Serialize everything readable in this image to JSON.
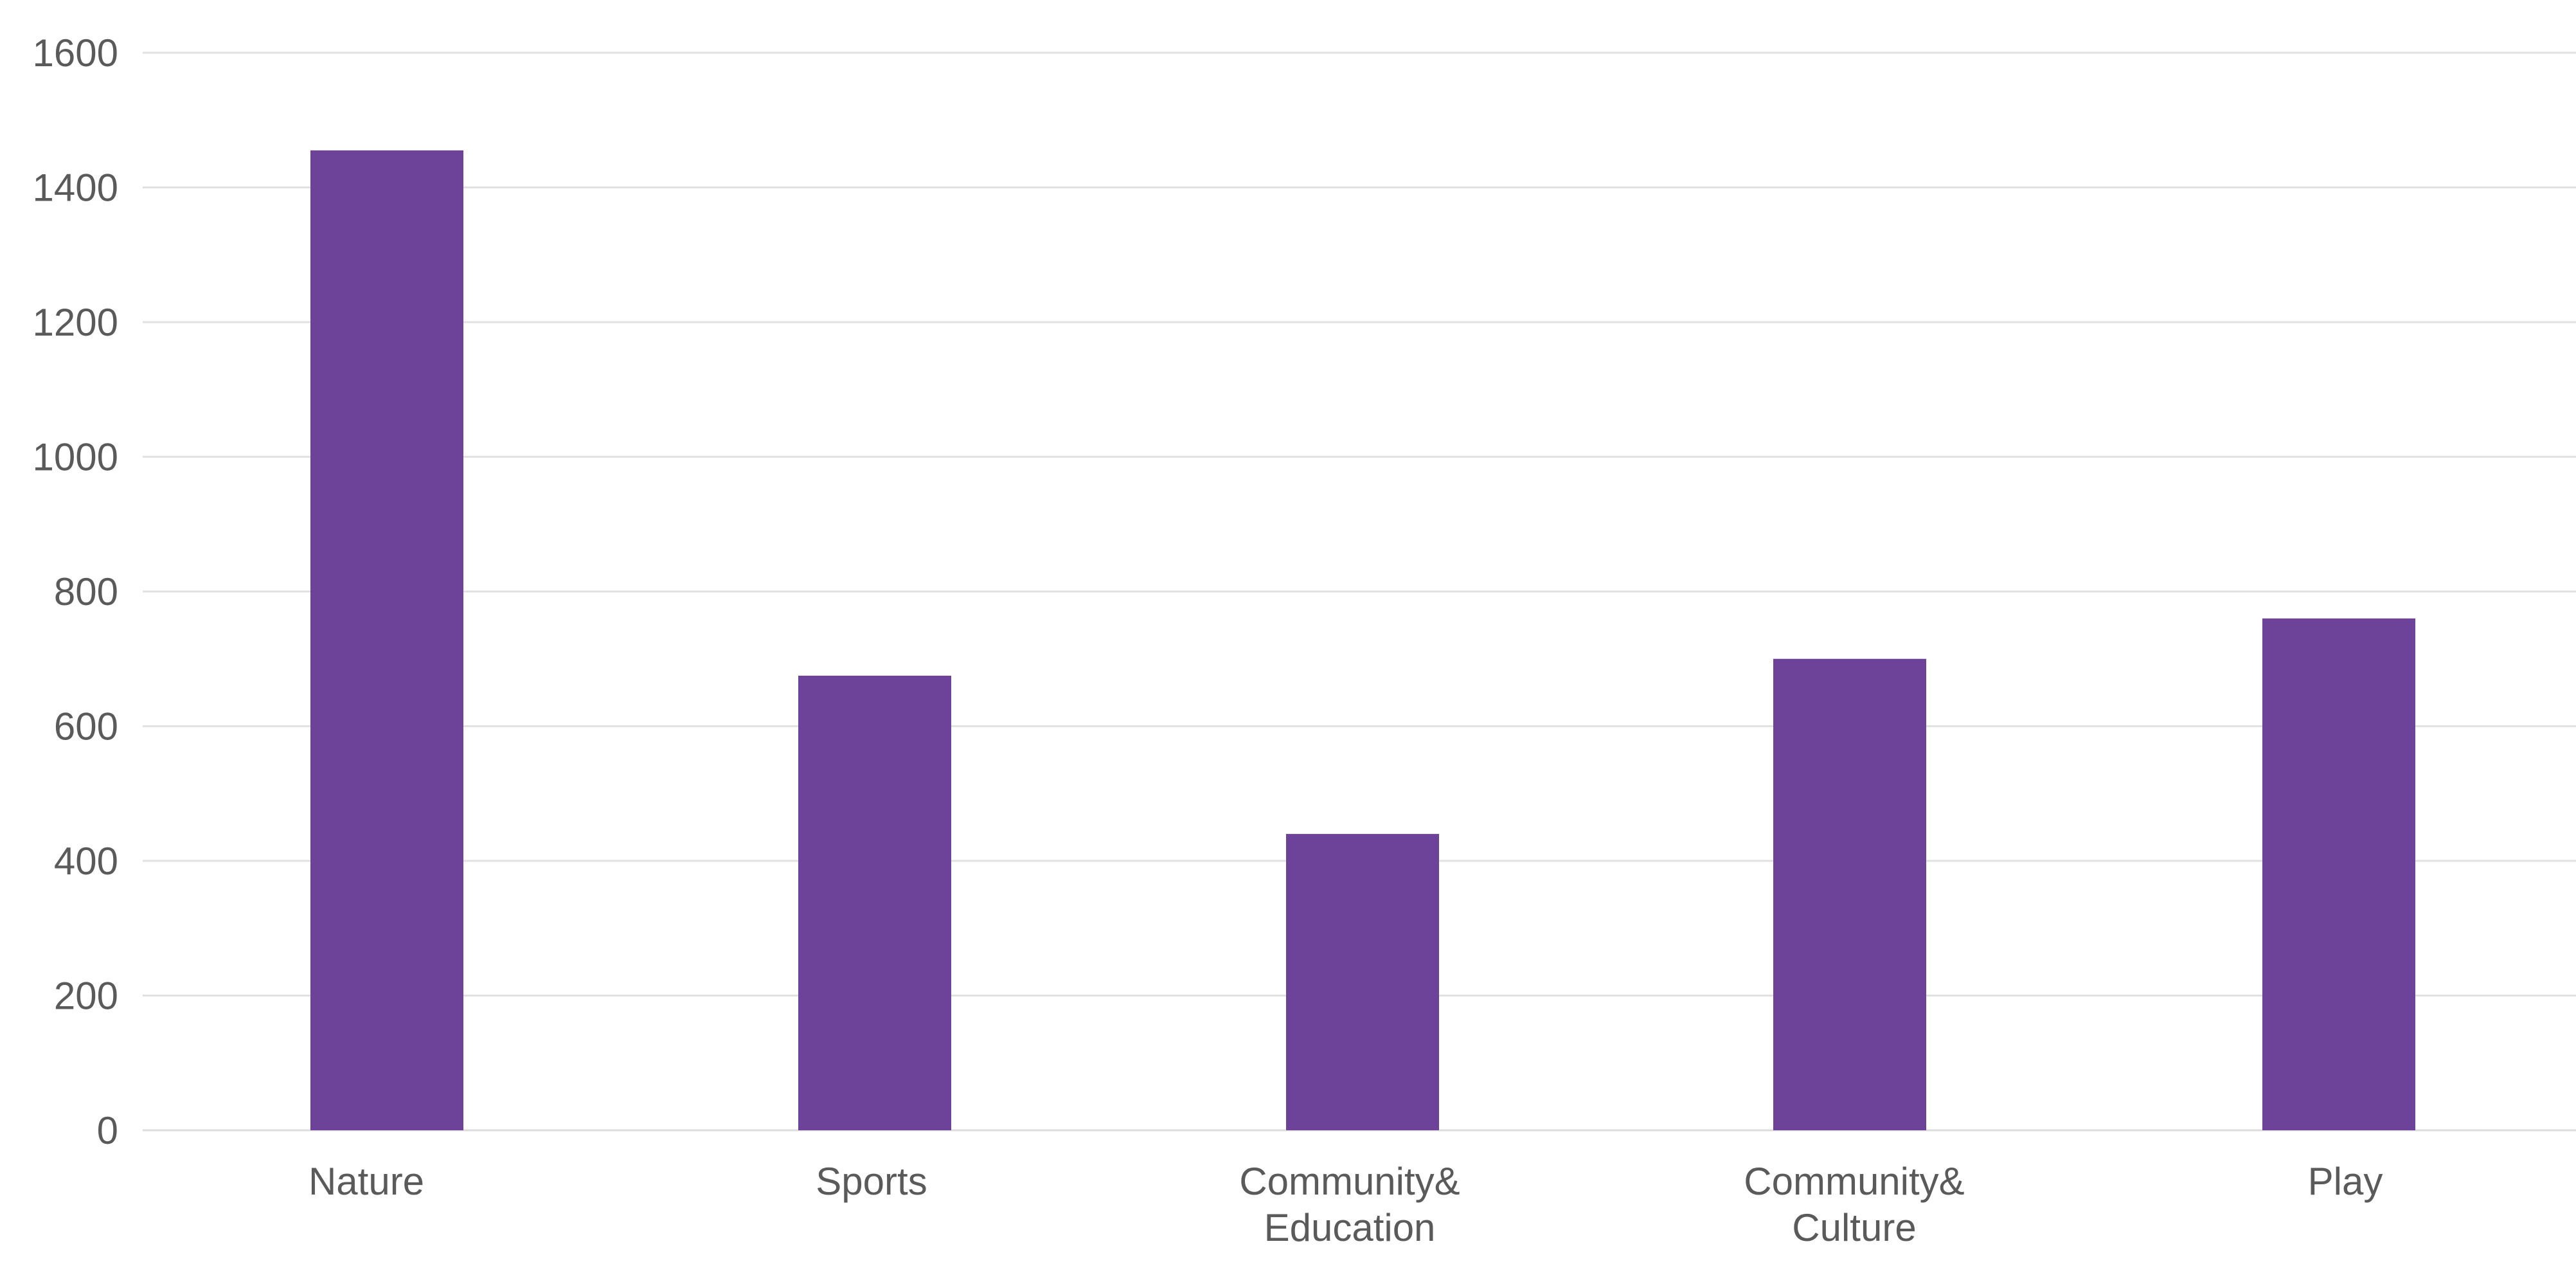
{
  "chart_data": {
    "type": "bar",
    "title": "",
    "xlabel": "",
    "ylabel": "",
    "categories": [
      [
        "Nature"
      ],
      [
        "Sports"
      ],
      [
        "Community&",
        "Education"
      ],
      [
        "Community&",
        "Culture"
      ],
      [
        "Play"
      ]
    ],
    "values": [
      1455,
      675,
      440,
      700,
      760
    ],
    "ylim": [
      0,
      1600
    ],
    "yticks": [
      0,
      200,
      400,
      600,
      800,
      1000,
      1200,
      1400,
      1600
    ],
    "grid": true,
    "bar_color": "#6c4398",
    "gridline_color": "#e1e1e1",
    "text_color": "#5a5a5a"
  }
}
